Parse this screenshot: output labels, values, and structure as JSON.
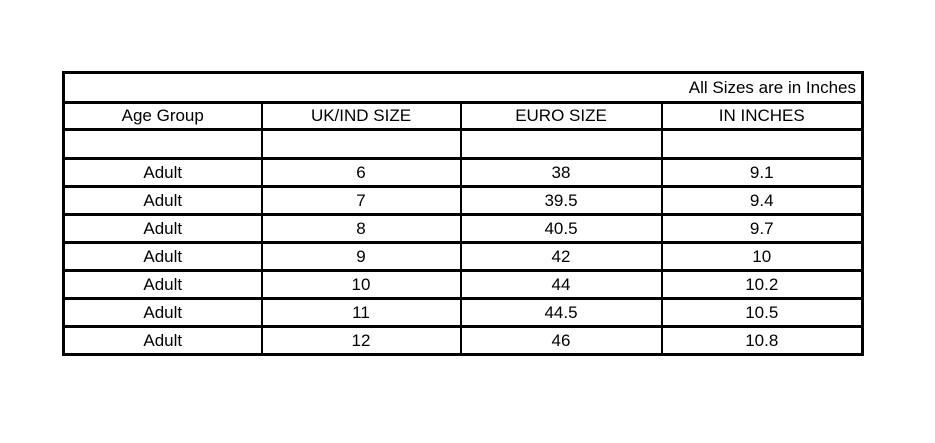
{
  "chart_data": {
    "type": "table",
    "title": "All Sizes are in Inches",
    "columns": [
      "Age Group",
      "UK/IND SIZE",
      "EURO SIZE",
      "IN INCHES"
    ],
    "rows": [
      [
        "Adult",
        "6",
        "38",
        "9.1"
      ],
      [
        "Adult",
        "7",
        "39.5",
        "9.4"
      ],
      [
        "Adult",
        "8",
        "40.5",
        "9.7"
      ],
      [
        "Adult",
        "9",
        "42",
        "10"
      ],
      [
        "Adult",
        "10",
        "44",
        "10.2"
      ],
      [
        "Adult",
        "11",
        "44.5",
        "10.5"
      ],
      [
        "Adult",
        "12",
        "46",
        "10.8"
      ]
    ],
    "layout": {
      "border_color": "#000000",
      "background_color": "#ffffff",
      "text_color": "#000000",
      "title_alignment": "right",
      "cell_alignment": "center",
      "has_empty_spacer_row": true
    }
  }
}
